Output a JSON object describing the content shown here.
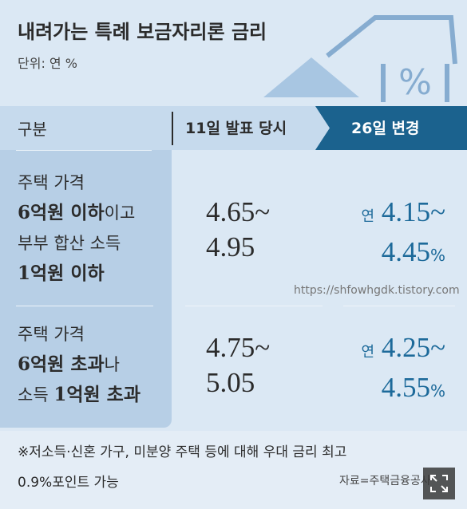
{
  "header": {
    "title": "내려가는 특례 보금자리론 금리",
    "unit": "단위: 연 %"
  },
  "table": {
    "columns": [
      "구분",
      "11일 발표 당시",
      "26일 변경"
    ],
    "rows": [
      {
        "label": [
          [
            {
              "text": "주택 가격",
              "bold": false
            }
          ],
          [
            {
              "text": "6억원 이하",
              "bold": true
            },
            {
              "text": "이고",
              "bold": false
            }
          ],
          [
            {
              "text": "부부 합산 소득",
              "bold": false
            }
          ],
          [
            {
              "text": "1억원 이하",
              "bold": true
            }
          ]
        ],
        "before": [
          "4.65~",
          "4.95"
        ],
        "after": [
          {
            "prefix": "연",
            "value": "4.15~"
          },
          {
            "value": "4.45",
            "suffix": "%"
          }
        ]
      },
      {
        "label": [
          [
            {
              "text": "주택 가격",
              "bold": false
            }
          ],
          [
            {
              "text": "6억원 초과",
              "bold": true
            },
            {
              "text": "나",
              "bold": false
            }
          ],
          [
            {
              "text": "소득 ",
              "bold": false
            },
            {
              "text": "1억원 초과",
              "bold": true
            }
          ]
        ],
        "before": [
          "4.75~",
          "5.05"
        ],
        "after": [
          {
            "prefix": "연",
            "value": "4.25~"
          },
          {
            "value": "4.55",
            "suffix": "%"
          }
        ]
      }
    ]
  },
  "footnote": [
    "※저소득·신혼 가구, 미분양 주택 등에 대해 우대 금리 최고",
    "0.9%포인트 가능"
  ],
  "source": "자료=주택금융공사",
  "watermark": "https://shfowhgdk.tistory.com"
}
